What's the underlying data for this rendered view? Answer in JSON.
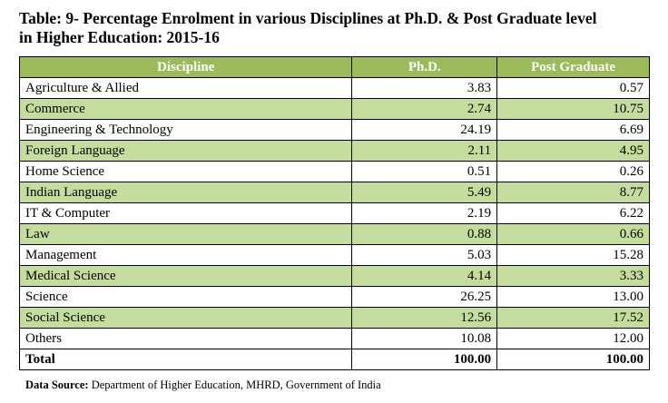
{
  "header": {
    "title_lines": [
      "Table: 9- Percentage Enrolment in various Disciplines at Ph.D. & Post Graduate level",
      "in Higher Education: 2015-16"
    ]
  },
  "table": {
    "columns": [
      "Discipline",
      "Ph.D.",
      "Post Graduate"
    ],
    "rows": [
      [
        "Agriculture & Allied",
        "3.83",
        "0.57"
      ],
      [
        "Commerce",
        "2.74",
        "10.75"
      ],
      [
        "Engineering & Technology",
        "24.19",
        "6.69"
      ],
      [
        "Foreign Language",
        "2.11",
        "4.95"
      ],
      [
        "Home Science",
        "0.51",
        "0.26"
      ],
      [
        "Indian Language",
        "5.49",
        "8.77"
      ],
      [
        "IT & Computer",
        "2.19",
        "6.22"
      ],
      [
        "Law",
        "0.88",
        "0.66"
      ],
      [
        "Management",
        "5.03",
        "15.28"
      ],
      [
        "Medical Science",
        "4.14",
        "3.33"
      ],
      [
        "Science",
        "26.25",
        "13.00"
      ],
      [
        "Social Science",
        "12.56",
        "17.52"
      ],
      [
        "Others",
        "10.08",
        "12.00"
      ]
    ],
    "total": [
      "Total",
      "100.00",
      "100.00"
    ]
  },
  "footer": {
    "label": "Data Source:",
    "text": "Department of Higher Education, MHRD, Government of India"
  }
}
